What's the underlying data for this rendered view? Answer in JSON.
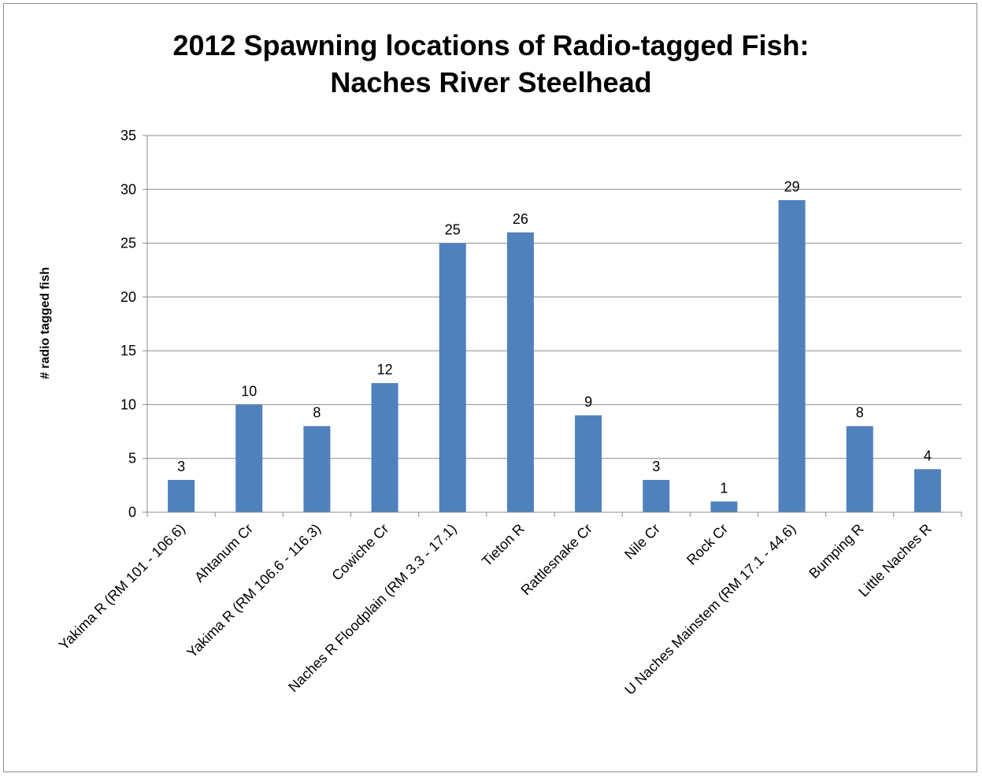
{
  "chart_data": {
    "type": "bar",
    "title_lines": [
      "2012 Spawning locations of Radio-tagged Fish:",
      "Naches River Steelhead"
    ],
    "xlabel": "",
    "ylabel": "# radio tagged fish",
    "ylim": [
      0,
      35
    ],
    "yticks": [
      0,
      5,
      10,
      15,
      20,
      25,
      30,
      35
    ],
    "grid": true,
    "legend": "none",
    "bar_color": "#4f81bd",
    "categories": [
      "Yakima R (RM 101 - 106.6)",
      "Ahtanum Cr",
      "Yakima R (RM 106.6 - 116.3)",
      "Cowiche Cr",
      "Naches R Floodplain  (RM 3.3 - 17.1)",
      "Tieton R",
      "Rattlesnake Cr",
      "Nile Cr",
      "Rock Cr",
      "U Naches Mainstem (RM 17.1 - 44.6)",
      "Bumping R",
      "Little Naches R"
    ],
    "values": [
      3,
      10,
      8,
      12,
      25,
      26,
      9,
      3,
      1,
      29,
      8,
      4
    ]
  }
}
